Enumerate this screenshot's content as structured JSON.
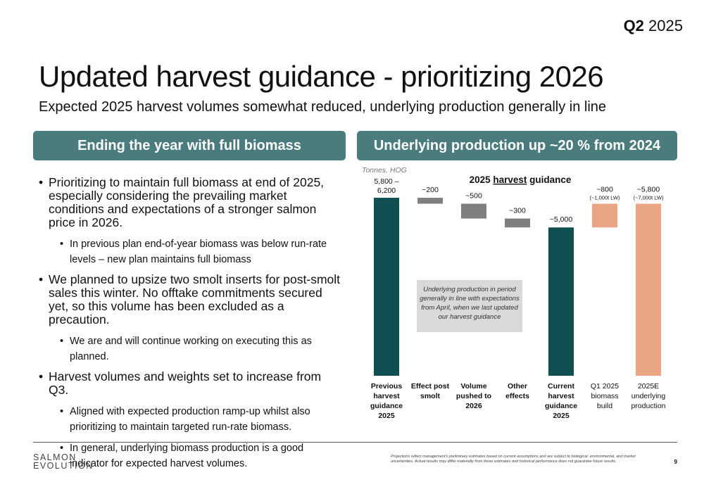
{
  "header": {
    "quarter_bold": "Q2",
    "quarter_year": "2025"
  },
  "title": "Updated harvest guidance - prioritizing 2026",
  "subtitle": "Expected 2025 harvest volumes somewhat reduced, underlying production generally in line",
  "left_panel": {
    "heading": "Ending the year with full biomass",
    "bullets": [
      {
        "text": "Prioritizing to maintain full biomass at end of 2025, especially considering the prevailing market conditions and expectations of a stronger salmon price in 2026.",
        "sub": [
          "In previous plan end-of-year biomass was below run-rate levels – new plan maintains full biomass"
        ]
      },
      {
        "text": "We planned to upsize two smolt inserts for post-smolt sales this winter. No offtake commitments secured yet, so this volume has been excluded as a precaution.",
        "sub": [
          "We are and will continue working on executing this as planned."
        ]
      },
      {
        "text": "Harvest volumes and weights set to increase from Q3.",
        "sub": [
          "Aligned with expected production ramp-up whilst also prioritizing to maintain targeted run-rate biomass.",
          "In general, underlying biomass production is a good indicator for expected harvest volumes."
        ]
      }
    ]
  },
  "right_panel": {
    "heading": "Underlying production up ~20 % from 2024"
  },
  "chart_data": {
    "type": "bar",
    "subtype": "waterfall",
    "title_before": "2025 ",
    "title_underlined": "harvest",
    "title_after": " guidance",
    "unit_note": "Tonnes, HOG",
    "ylim": [
      0,
      6500
    ],
    "callout": "Underlying production in period generally in line with expectations from April, when we last updated our harvest guidance",
    "bars": [
      {
        "category": [
          "Previous",
          "harvest",
          "guidance",
          "2025"
        ],
        "bold": true,
        "base": 0,
        "value": 6000,
        "label": "5,800 –",
        "label2": "6,200",
        "color": "#0f4f52"
      },
      {
        "category": [
          "Effect post",
          "smolt"
        ],
        "bold": true,
        "base": 5800,
        "value": 200,
        "label": "~200",
        "label2": "",
        "color": "#7f7f7f"
      },
      {
        "category": [
          "Volume",
          "pushed to",
          "2026"
        ],
        "bold": true,
        "base": 5300,
        "value": 500,
        "label": "~500",
        "label2": "",
        "color": "#7f7f7f"
      },
      {
        "category": [
          "Other",
          "effects"
        ],
        "bold": true,
        "base": 5000,
        "value": 300,
        "label": "~300",
        "label2": "",
        "color": "#7f7f7f"
      },
      {
        "category": [
          "Current",
          "harvest",
          "guidance",
          "2025"
        ],
        "bold": true,
        "base": 0,
        "value": 5000,
        "label": "~5,000",
        "label2": "",
        "color": "#0f4f52"
      },
      {
        "category": [
          "Q1 2025",
          "biomass",
          "build"
        ],
        "bold": false,
        "base": 5000,
        "value": 800,
        "label": "~800",
        "label2": "(~1,000t LW)",
        "color": "#eaa585"
      },
      {
        "category": [
          "2025E",
          "underlying",
          "production"
        ],
        "bold": false,
        "base": 0,
        "value": 5800,
        "label": "~5,800",
        "label2": "(~7,000t LW)",
        "color": "#eaa585"
      }
    ]
  },
  "footer": {
    "logo_line1": "SALMON",
    "logo_line2": "EVOLUTION",
    "disclaimer": "Projections reflect management's preliminary estimates based on current assumptions and are subject to biological, environmental, and market uncertainties. Actual results may differ materially from these estimates and historical performance does not guarantee future results.",
    "page": "9"
  }
}
